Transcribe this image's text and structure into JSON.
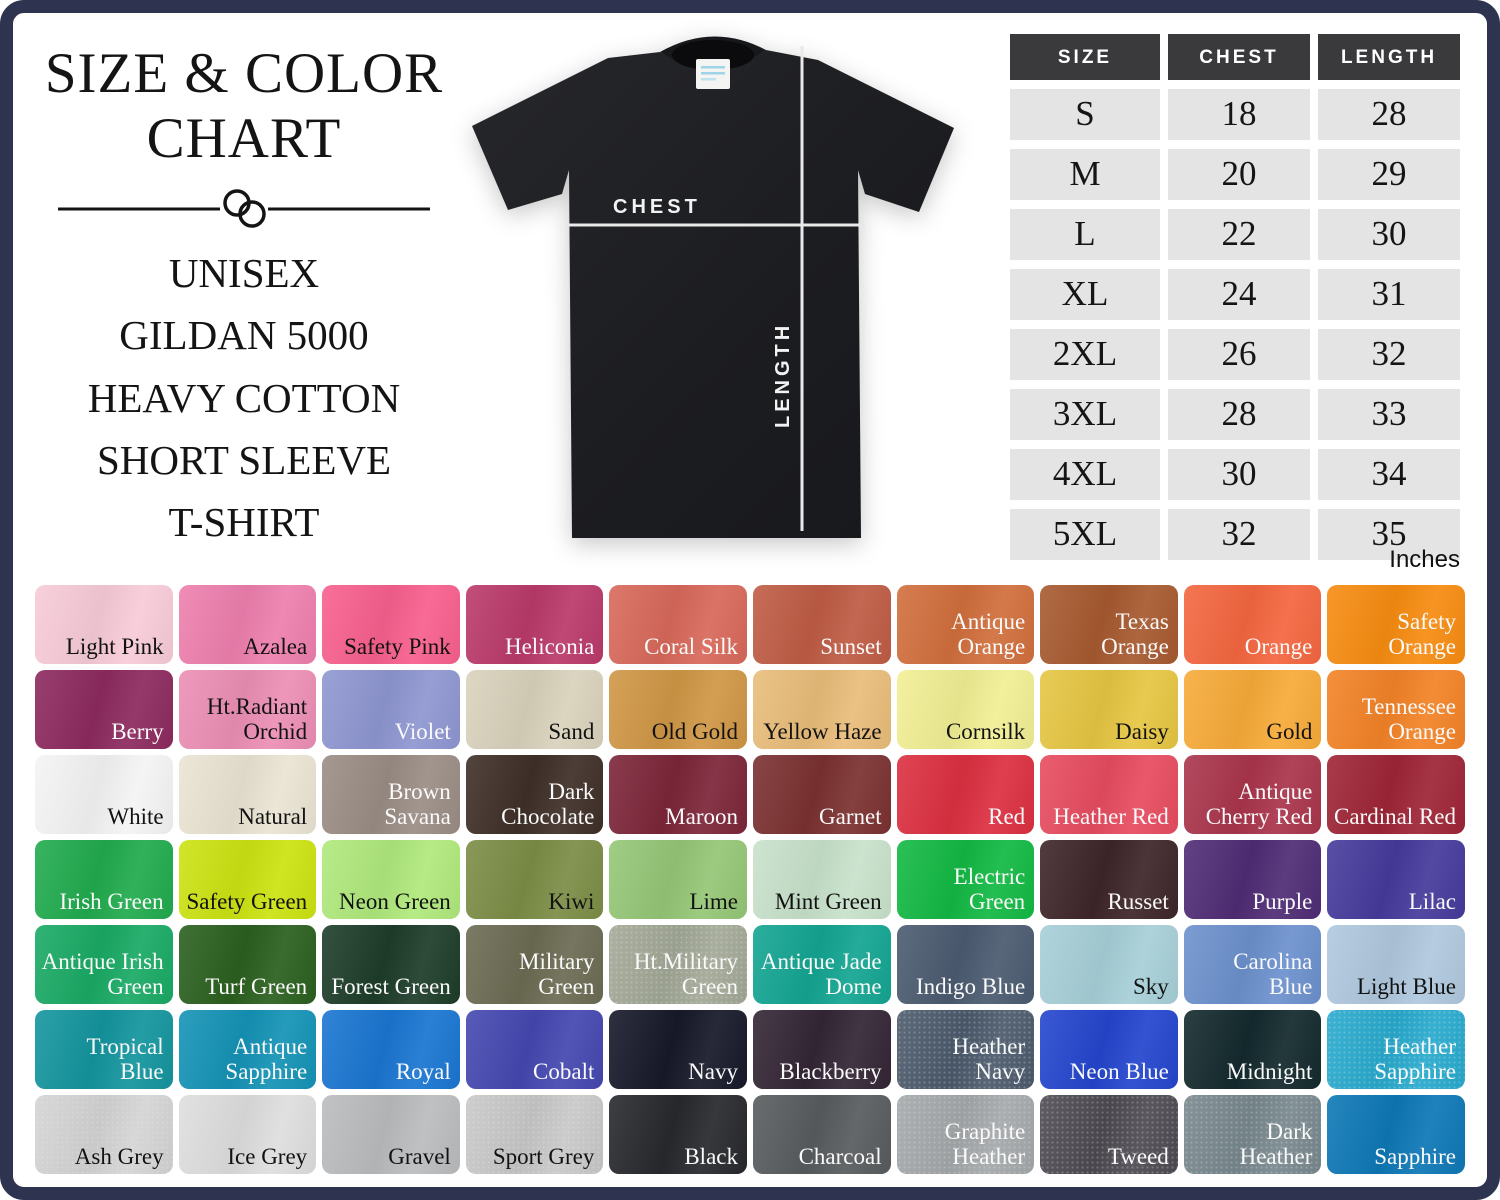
{
  "header": {
    "title_line1": "SIZE & COLOR",
    "title_line2": "CHART",
    "product_lines": [
      "UNISEX",
      "GILDAN 5000",
      "HEAVY COTTON",
      "SHORT SLEEVE",
      "T-SHIRT"
    ]
  },
  "shirt": {
    "chest_label": "CHEST",
    "length_label": "LENGTH"
  },
  "size_table": {
    "columns": [
      "SIZE",
      "CHEST",
      "LENGTH"
    ],
    "rows": [
      [
        "S",
        "18",
        "28"
      ],
      [
        "M",
        "20",
        "29"
      ],
      [
        "L",
        "22",
        "30"
      ],
      [
        "XL",
        "24",
        "31"
      ],
      [
        "2XL",
        "26",
        "32"
      ],
      [
        "3XL",
        "28",
        "33"
      ],
      [
        "4XL",
        "30",
        "34"
      ],
      [
        "5XL",
        "32",
        "35"
      ]
    ],
    "unit_note": "Inches"
  },
  "color_chart": {
    "rows": [
      [
        {
          "name": "Light Pink",
          "hex": "#f7cbd8",
          "text": "dark"
        },
        {
          "name": "Azalea",
          "hex": "#ee7fae",
          "text": "dark"
        },
        {
          "name": "Safety Pink",
          "hex": "#f8608e",
          "text": "dark"
        },
        {
          "name": "Heliconia",
          "hex": "#ba3a6a",
          "text": "light"
        },
        {
          "name": "Coral Silk",
          "hex": "#d8695b",
          "text": "light"
        },
        {
          "name": "Sunset",
          "hex": "#bf5c45",
          "text": "light"
        },
        {
          "name": "Antique Orange",
          "hex": "#d16f3d",
          "text": "light"
        },
        {
          "name": "Texas Orange",
          "hex": "#a75a30",
          "text": "light"
        },
        {
          "name": "Orange",
          "hex": "#f46740",
          "text": "light"
        },
        {
          "name": "Safety Orange",
          "hex": "#f78c11",
          "text": "light"
        }
      ],
      [
        {
          "name": "Berry",
          "hex": "#8d2a5f",
          "text": "light"
        },
        {
          "name": "Ht.Radiant Orchid",
          "hex": "#ec8fb5",
          "text": "dark"
        },
        {
          "name": "Violet",
          "hex": "#8e97d1",
          "text": "light"
        },
        {
          "name": "Sand",
          "hex": "#d9d2bc",
          "text": "dark"
        },
        {
          "name": "Old Gold",
          "hex": "#d09746",
          "text": "dark"
        },
        {
          "name": "Yellow Haze",
          "hex": "#e9bd7a",
          "text": "dark"
        },
        {
          "name": "Cornsilk",
          "hex": "#f2ef94",
          "text": "dark"
        },
        {
          "name": "Daisy",
          "hex": "#e6c643",
          "text": "dark"
        },
        {
          "name": "Gold",
          "hex": "#f7ab39",
          "text": "dark"
        },
        {
          "name": "Tennessee Orange",
          "hex": "#f38327",
          "text": "light"
        }
      ],
      [
        {
          "name": "White",
          "hex": "#f4f4f4",
          "text": "dark"
        },
        {
          "name": "Natural",
          "hex": "#eae4d3",
          "text": "dark"
        },
        {
          "name": "Brown Savana",
          "hex": "#9b8d85",
          "text": "light"
        },
        {
          "name": "Dark Chocolate",
          "hex": "#3f3028",
          "text": "light"
        },
        {
          "name": "Maroon",
          "hex": "#7c2639",
          "text": "light"
        },
        {
          "name": "Garnet",
          "hex": "#7b3131",
          "text": "light"
        },
        {
          "name": "Red",
          "hex": "#dc3041",
          "text": "light"
        },
        {
          "name": "Heather Red",
          "hex": "#e74c60",
          "text": "light"
        },
        {
          "name": "Antique Cherry Red",
          "hex": "#aa354c",
          "text": "light"
        },
        {
          "name": "Cardinal Red",
          "hex": "#9e2536",
          "text": "light"
        }
      ],
      [
        {
          "name": "Irish Green",
          "hex": "#21ab4e",
          "text": "light"
        },
        {
          "name": "Safety Green",
          "hex": "#cce312",
          "text": "dark"
        },
        {
          "name": "Neon Green",
          "hex": "#b0e97c",
          "text": "dark"
        },
        {
          "name": "Kiwi",
          "hex": "#7c8d46",
          "text": "dark"
        },
        {
          "name": "Lime",
          "hex": "#95c777",
          "text": "dark"
        },
        {
          "name": "Mint Green",
          "hex": "#c8e2cb",
          "text": "dark"
        },
        {
          "name": "Electric Green",
          "hex": "#13b944",
          "text": "light"
        },
        {
          "name": "Russet",
          "hex": "#3e2629",
          "text": "light"
        },
        {
          "name": "Purple",
          "hex": "#502c75",
          "text": "light"
        },
        {
          "name": "Lilac",
          "hex": "#463b9c",
          "text": "light"
        }
      ],
      [
        {
          "name": "Antique Irish Green",
          "hex": "#1aaa65",
          "text": "light"
        },
        {
          "name": "Turf Green",
          "hex": "#2b601f",
          "text": "light"
        },
        {
          "name": "Forest Green",
          "hex": "#1e3d2a",
          "text": "light"
        },
        {
          "name": "Military Green",
          "hex": "#6c6c54",
          "text": "light"
        },
        {
          "name": "Ht.Military Green",
          "hex": "#a2a896",
          "text": "light",
          "heather": true
        },
        {
          "name": "Antique Jade Dome",
          "hex": "#14a592",
          "text": "light"
        },
        {
          "name": "Indigo Blue",
          "hex": "#4b5b70",
          "text": "light"
        },
        {
          "name": "Sky",
          "hex": "#a7cfd8",
          "text": "dark"
        },
        {
          "name": "Carolina Blue",
          "hex": "#6d91cd",
          "text": "light"
        },
        {
          "name": "Light Blue",
          "hex": "#b0c8de",
          "text": "dark"
        }
      ],
      [
        {
          "name": "Tropical Blue",
          "hex": "#14959e",
          "text": "light"
        },
        {
          "name": "Antique Sapphire",
          "hex": "#1593b6",
          "text": "light"
        },
        {
          "name": "Royal",
          "hex": "#1a76d1",
          "text": "light"
        },
        {
          "name": "Cobalt",
          "hex": "#4548b0",
          "text": "light"
        },
        {
          "name": "Navy",
          "hex": "#17192a",
          "text": "light"
        },
        {
          "name": "Blackberry",
          "hex": "#342635",
          "text": "light"
        },
        {
          "name": "Heather Navy",
          "hex": "#4b5a6c",
          "text": "light",
          "heather": true
        },
        {
          "name": "Neon Blue",
          "hex": "#2446ce",
          "text": "light"
        },
        {
          "name": "Midnight",
          "hex": "#142a2e",
          "text": "light"
        },
        {
          "name": "Heather Sapphire",
          "hex": "#27aace",
          "text": "light",
          "heather": true
        }
      ],
      [
        {
          "name": "Ash Grey",
          "hex": "#d4d4d4",
          "text": "dark",
          "heather": true
        },
        {
          "name": "Ice Grey",
          "hex": "#dedede",
          "text": "dark"
        },
        {
          "name": "Gravel",
          "hex": "#babcbe",
          "text": "dark"
        },
        {
          "name": "Sport Grey",
          "hex": "#c8c8c8",
          "text": "dark",
          "heather": true
        },
        {
          "name": "Black",
          "hex": "#28292d",
          "text": "light"
        },
        {
          "name": "Charcoal",
          "hex": "#585c5e",
          "text": "light"
        },
        {
          "name": "Graphite Heather",
          "hex": "#a4a8aa",
          "text": "light",
          "heather": true
        },
        {
          "name": "Tweed",
          "hex": "#4e4a52",
          "text": "light",
          "heather": true
        },
        {
          "name": "Dark Heather",
          "hex": "#78888e",
          "text": "light",
          "heather": true
        },
        {
          "name": "Sapphire",
          "hex": "#0e78b6",
          "text": "light"
        }
      ]
    ]
  },
  "accent_colors": {
    "border": "#2e3450",
    "table_header_bg": "#3a3a3c",
    "table_row_bg": "#e4e4e4"
  }
}
